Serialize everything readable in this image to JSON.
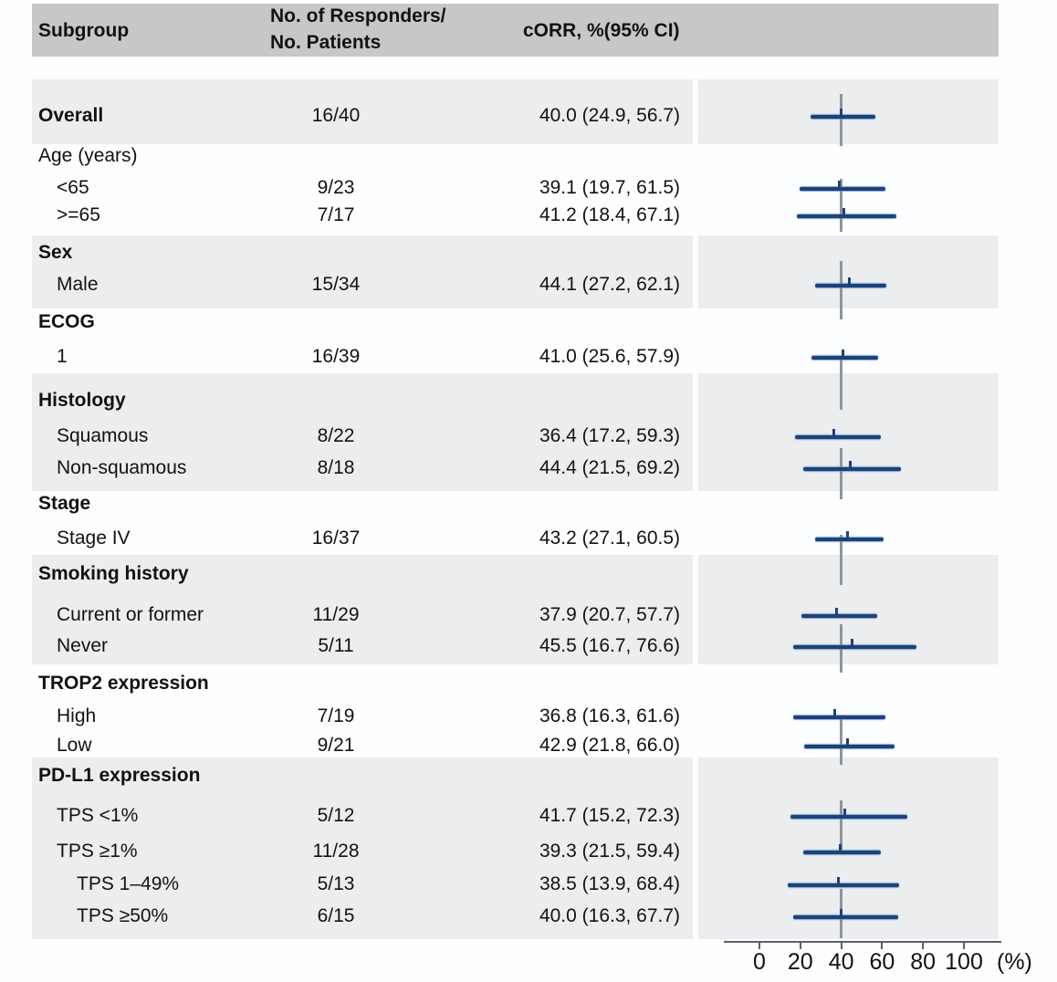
{
  "header": {
    "subgroup": "Subgroup",
    "responders_line1": "No. of Responders/",
    "responders_line2": "No. Patients",
    "corr": "cORR, %(95% CI)"
  },
  "colors": {
    "accent_navy": "#1c4379",
    "header_bg": "#c6c7c8",
    "band_bg": "#ebedee",
    "reference_line": "#8f949b",
    "axis": "#5d6065"
  },
  "chart_data": {
    "type": "forest",
    "x_axis": {
      "min": 0,
      "max": 100,
      "ticks": [
        "0",
        "20",
        "40",
        "60",
        "80",
        "100"
      ],
      "unit": "(%)"
    },
    "reference_value": 40,
    "sections": [
      {
        "title": null,
        "title_bold": false,
        "shaded": true,
        "rows": [
          {
            "label": "Overall",
            "bold": true,
            "level": 0,
            "count": "16/40",
            "corr": "40.0 (24.9, 56.7)",
            "est": 40.0,
            "lo": 24.9,
            "hi": 56.7
          }
        ]
      },
      {
        "title": "Age (years)",
        "title_bold": false,
        "shaded": false,
        "rows": [
          {
            "label": "<65",
            "bold": false,
            "level": 1,
            "count": "9/23",
            "corr": "39.1 (19.7, 61.5)",
            "est": 39.1,
            "lo": 19.7,
            "hi": 61.5
          },
          {
            "label": ">=65",
            "bold": false,
            "level": 1,
            "count": "7/17",
            "corr": "41.2 (18.4, 67.1)",
            "est": 41.2,
            "lo": 18.4,
            "hi": 67.1
          }
        ]
      },
      {
        "title": "Sex",
        "title_bold": true,
        "shaded": true,
        "rows": [
          {
            "label": "Male",
            "bold": false,
            "level": 1,
            "count": "15/34",
            "corr": "44.1 (27.2, 62.1)",
            "est": 44.1,
            "lo": 27.2,
            "hi": 62.1
          }
        ]
      },
      {
        "title": "ECOG",
        "title_bold": true,
        "shaded": false,
        "rows": [
          {
            "label": "1",
            "bold": false,
            "level": 1,
            "count": "16/39",
            "corr": "41.0 (25.6, 57.9)",
            "est": 41.0,
            "lo": 25.6,
            "hi": 57.9
          }
        ]
      },
      {
        "title": "Histology",
        "title_bold": true,
        "shaded": true,
        "rows": [
          {
            "label": "Squamous",
            "bold": false,
            "level": 1,
            "count": "8/22",
            "corr": "36.4 (17.2, 59.3)",
            "est": 36.4,
            "lo": 17.2,
            "hi": 59.3
          },
          {
            "label": "Non-squamous",
            "bold": false,
            "level": 1,
            "count": "8/18",
            "corr": "44.4 (21.5, 69.2)",
            "est": 44.4,
            "lo": 21.5,
            "hi": 69.2
          }
        ]
      },
      {
        "title": "Stage",
        "title_bold": true,
        "shaded": false,
        "rows": [
          {
            "label": "Stage IV",
            "bold": false,
            "level": 1,
            "count": "16/37",
            "corr": "43.2 (27.1, 60.5)",
            "est": 43.2,
            "lo": 27.1,
            "hi": 60.5
          }
        ]
      },
      {
        "title": "Smoking history",
        "title_bold": true,
        "shaded": true,
        "rows": [
          {
            "label": "Current or former",
            "bold": false,
            "level": 1,
            "count": "11/29",
            "corr": "37.9 (20.7, 57.7)",
            "est": 37.9,
            "lo": 20.7,
            "hi": 57.7
          },
          {
            "label": "Never",
            "bold": false,
            "level": 1,
            "count": "5/11",
            "corr": "45.5 (16.7, 76.6)",
            "est": 45.5,
            "lo": 16.7,
            "hi": 76.6
          }
        ]
      },
      {
        "title": "TROP2 expression",
        "title_bold": true,
        "shaded": false,
        "rows": [
          {
            "label": "High",
            "bold": false,
            "level": 1,
            "count": "7/19",
            "corr": "36.8 (16.3, 61.6)",
            "est": 36.8,
            "lo": 16.3,
            "hi": 61.6
          },
          {
            "label": "Low",
            "bold": false,
            "level": 1,
            "count": "9/21",
            "corr": "42.9 (21.8, 66.0)",
            "est": 42.9,
            "lo": 21.8,
            "hi": 66.0
          }
        ]
      },
      {
        "title": "PD-L1 expression",
        "title_bold": true,
        "shaded": true,
        "rows": [
          {
            "label": "TPS <1%",
            "bold": false,
            "level": 1,
            "count": "5/12",
            "corr": "41.7 (15.2, 72.3)",
            "est": 41.7,
            "lo": 15.2,
            "hi": 72.3
          },
          {
            "label": "TPS ≥1%",
            "bold": false,
            "level": 1,
            "count": "11/28",
            "corr": "39.3 (21.5, 59.4)",
            "est": 39.3,
            "lo": 21.5,
            "hi": 59.4
          },
          {
            "label": "TPS 1–49%",
            "bold": false,
            "level": 2,
            "count": "5/13",
            "corr": "38.5 (13.9, 68.4)",
            "est": 38.5,
            "lo": 13.9,
            "hi": 68.4
          },
          {
            "label": "TPS ≥50%",
            "bold": false,
            "level": 2,
            "count": "6/15",
            "corr": "40.0 (16.3, 67.7)",
            "est": 40.0,
            "lo": 16.3,
            "hi": 67.7
          }
        ]
      }
    ]
  }
}
